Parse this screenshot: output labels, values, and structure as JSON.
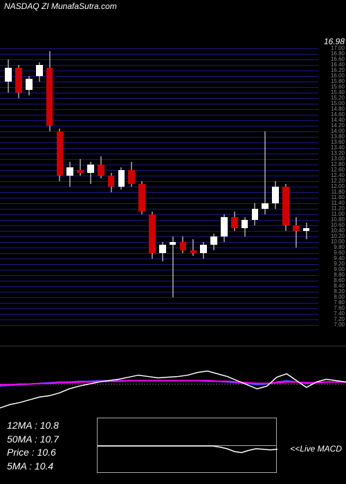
{
  "header": {
    "title": "NASDAQ ZI MunafaSutra.com"
  },
  "main_chart": {
    "type": "candlestick",
    "background_color": "#000000",
    "grid_color": "#1a1a8a",
    "up_color": "#ffffff",
    "down_color": "#d00000",
    "wick_color": "#ffffff",
    "y_top_label": "16.98",
    "y_min": 7.0,
    "y_max": 17.0,
    "y_tick_step": 0.2,
    "candles": [
      {
        "o": 15.8,
        "h": 16.6,
        "l": 15.4,
        "c": 16.3
      },
      {
        "o": 16.3,
        "h": 16.4,
        "l": 15.2,
        "c": 15.4
      },
      {
        "o": 15.5,
        "h": 16.0,
        "l": 15.3,
        "c": 15.9
      },
      {
        "o": 16.0,
        "h": 16.5,
        "l": 15.8,
        "c": 16.4
      },
      {
        "o": 16.3,
        "h": 16.9,
        "l": 14.0,
        "c": 14.2
      },
      {
        "o": 14.0,
        "h": 14.1,
        "l": 12.2,
        "c": 12.4
      },
      {
        "o": 12.4,
        "h": 12.9,
        "l": 12.0,
        "c": 12.7
      },
      {
        "o": 12.6,
        "h": 13.0,
        "l": 12.4,
        "c": 12.5
      },
      {
        "o": 12.5,
        "h": 12.9,
        "l": 12.1,
        "c": 12.8
      },
      {
        "o": 12.8,
        "h": 13.1,
        "l": 12.3,
        "c": 12.4
      },
      {
        "o": 12.4,
        "h": 12.5,
        "l": 11.8,
        "c": 12.0
      },
      {
        "o": 12.0,
        "h": 12.7,
        "l": 11.9,
        "c": 12.6
      },
      {
        "o": 12.6,
        "h": 12.9,
        "l": 12.0,
        "c": 12.1
      },
      {
        "o": 12.1,
        "h": 12.2,
        "l": 11.0,
        "c": 11.1
      },
      {
        "o": 11.0,
        "h": 11.1,
        "l": 9.4,
        "c": 9.6
      },
      {
        "o": 9.6,
        "h": 10.0,
        "l": 9.3,
        "c": 9.9
      },
      {
        "o": 9.9,
        "h": 10.2,
        "l": 8.0,
        "c": 10.0
      },
      {
        "o": 10.0,
        "h": 10.2,
        "l": 9.6,
        "c": 9.7
      },
      {
        "o": 9.7,
        "h": 10.1,
        "l": 9.5,
        "c": 9.6
      },
      {
        "o": 9.6,
        "h": 10.0,
        "l": 9.4,
        "c": 9.9
      },
      {
        "o": 9.9,
        "h": 10.3,
        "l": 9.7,
        "c": 10.2
      },
      {
        "o": 10.2,
        "h": 11.0,
        "l": 10.0,
        "c": 10.9
      },
      {
        "o": 10.9,
        "h": 11.1,
        "l": 10.4,
        "c": 10.5
      },
      {
        "o": 10.5,
        "h": 10.9,
        "l": 10.2,
        "c": 10.8
      },
      {
        "o": 10.8,
        "h": 11.4,
        "l": 10.6,
        "c": 11.2
      },
      {
        "o": 11.2,
        "h": 14.0,
        "l": 11.0,
        "c": 11.4
      },
      {
        "o": 11.4,
        "h": 12.2,
        "l": 11.2,
        "c": 12.0
      },
      {
        "o": 12.0,
        "h": 12.1,
        "l": 10.4,
        "c": 10.6
      },
      {
        "o": 10.6,
        "h": 10.9,
        "l": 9.8,
        "c": 10.4
      },
      {
        "o": 10.4,
        "h": 10.7,
        "l": 10.1,
        "c": 10.5
      }
    ]
  },
  "macd": {
    "signal_color": "#ff00ff",
    "macd_color": "#4444ff",
    "fast_color": "#ffffff",
    "zero_color": "#666666",
    "fast_line": [
      90,
      85,
      82,
      78,
      74,
      72,
      68,
      62,
      58,
      55,
      52,
      50,
      48,
      45,
      42,
      44,
      46,
      45,
      44,
      42,
      38,
      36,
      40,
      44,
      50,
      56,
      62,
      58,
      45,
      40,
      50,
      60,
      52,
      48,
      50,
      52
    ],
    "macd_line": [
      58,
      57,
      56,
      55,
      54,
      53,
      52,
      52,
      51,
      51,
      50,
      50,
      50,
      50,
      50,
      50,
      50,
      50,
      50,
      50,
      50,
      51,
      51,
      52,
      53,
      54,
      56,
      55,
      52,
      50,
      52,
      54,
      53,
      52,
      52,
      52
    ],
    "signal_line": [
      56,
      56,
      55,
      55,
      54,
      54,
      53,
      53,
      52,
      52,
      51,
      51,
      51,
      50,
      50,
      50,
      50,
      50,
      50,
      50,
      50,
      50,
      51,
      51,
      52,
      53,
      54,
      54,
      53,
      52,
      52,
      53,
      53,
      52,
      52,
      52
    ]
  },
  "info": {
    "rows": [
      {
        "label": "12MA",
        "value": "10.8"
      },
      {
        "label": "50MA",
        "value": "10.7"
      },
      {
        "label": "Price",
        "value": "10.6"
      },
      {
        "label": "5MA",
        "value": "10.4"
      }
    ],
    "live_label": "<<Live MACD",
    "live_line": [
      50,
      50,
      50,
      50,
      50,
      50,
      50,
      50,
      50,
      50,
      50,
      50,
      50,
      50,
      50,
      50,
      50,
      52,
      55,
      60,
      62,
      58,
      55,
      56,
      57,
      56
    ]
  }
}
